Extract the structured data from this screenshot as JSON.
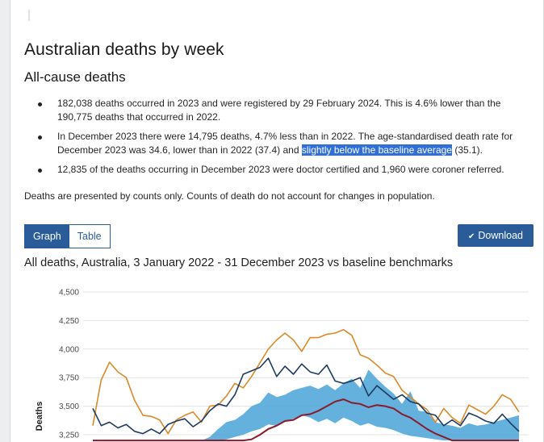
{
  "page": {
    "title": "Australian deaths by week",
    "subtitle": "All-cause deaths",
    "bullets": [
      {
        "text": "182,038 deaths occurred in 2023 and were registered by 29 February 2024. This is 4.6% lower than the 190,775 deaths that occurred in 2022."
      },
      {
        "pre": "In December 2023 there were 14,795 deaths, 4.7% less than in 2022. The age-standardised death rate for December 2023 was 34.6, lower than in 2022 (37.4) and ",
        "highlight": "slightly below the baseline average",
        "post": " (35.1)."
      },
      {
        "text": "12,835 of the deaths occurring in December 2023 were doctor certified and 1,960 were coroner referred."
      }
    ],
    "note": "Deaths are presented by counts only. Counts of death do not account for changes in population."
  },
  "controls": {
    "tab_graph": "Graph",
    "tab_table": "Table",
    "download": "Download",
    "active_tab": "Graph"
  },
  "colors": {
    "primary": "#2b5c9a",
    "orange": "#d98a2b",
    "navy": "#1e3a5f",
    "baseline_band": "#4aa3d8",
    "dark_red": "#8b1a2b",
    "highlight": "#2f6fd6"
  },
  "chart_data": {
    "type": "line",
    "title": "All deaths, Australia, 3 January 2022 - 31 December 2023 vs baseline benchmarks",
    "ylabel": "Deaths",
    "xlabel": "",
    "ylim": [
      3250,
      4500
    ],
    "yticks": [
      4500,
      4250,
      4000,
      3750,
      3500,
      3250
    ],
    "grid": true,
    "x": [
      1,
      2,
      3,
      4,
      5,
      6,
      7,
      8,
      9,
      10,
      11,
      12,
      13,
      14,
      15,
      16,
      17,
      18,
      19,
      20,
      21,
      22,
      23,
      24,
      25,
      26,
      27,
      28,
      29,
      30,
      31,
      32,
      33,
      34,
      35,
      36,
      37,
      38,
      39,
      40,
      41,
      42,
      43,
      44,
      45,
      46,
      47,
      48,
      49,
      50,
      51,
      52
    ],
    "series": [
      {
        "values": [
          3330,
          3730,
          3885,
          3800,
          3750,
          3550,
          3420,
          3410,
          3380,
          3260,
          3380,
          3420,
          3450,
          3360,
          3500,
          3510,
          3590,
          3700,
          3660,
          3760,
          3880,
          4000,
          4080,
          4140,
          4080,
          3980,
          4100,
          4100,
          4130,
          4140,
          4170,
          4120,
          3950,
          3920,
          3860,
          3790,
          3760,
          3640,
          3580,
          3520,
          3470,
          3360,
          3480,
          3400,
          3350,
          3510,
          3470,
          3430,
          3500,
          3600,
          3560,
          3450
        ]
      },
      {
        "values": [
          3480,
          3330,
          3360,
          3310,
          3340,
          3280,
          3260,
          3300,
          3260,
          3340,
          3370,
          3390,
          3320,
          3370,
          3460,
          3520,
          3500,
          3600,
          3780,
          3810,
          3840,
          3920,
          3760,
          3850,
          3780,
          3870,
          3800,
          3780,
          3860,
          3720,
          3700,
          3720,
          3750,
          3590,
          3680,
          3620,
          3560,
          3600,
          3540,
          3520,
          3440,
          3420,
          3330,
          3380,
          3330,
          3440,
          3410,
          3370,
          3350,
          3430,
          3350,
          3280
        ]
      }
    ],
    "baseline_band": {
      "upper": [
        3200,
        3200,
        3200,
        3200,
        3200,
        3200,
        3200,
        3200,
        3200,
        3200,
        3200,
        3200,
        3200,
        3200,
        3230,
        3300,
        3360,
        3380,
        3430,
        3500,
        3530,
        3620,
        3580,
        3600,
        3640,
        3660,
        3680,
        3650,
        3690,
        3640,
        3700,
        3740,
        3660,
        3820,
        3740,
        3670,
        3610,
        3520,
        3630,
        3460,
        3450,
        3360,
        3340,
        3330,
        3310,
        3350,
        3330,
        3340,
        3360,
        3380,
        3400,
        3420
      ],
      "lower": [
        3200,
        3200,
        3200,
        3200,
        3200,
        3200,
        3200,
        3200,
        3200,
        3200,
        3200,
        3200,
        3200,
        3200,
        3200,
        3200,
        3210,
        3230,
        3250,
        3280,
        3300,
        3340,
        3330,
        3370,
        3390,
        3420,
        3400,
        3360,
        3390,
        3350,
        3400,
        3370,
        3330,
        3350,
        3320,
        3310,
        3290,
        3260,
        3240,
        3230,
        3220,
        3210,
        3200,
        3200,
        3200,
        3200,
        3200,
        3200,
        3200,
        3200,
        3200,
        3200
      ]
    },
    "baseline_average": [
      3200,
      3200,
      3200,
      3200,
      3200,
      3200,
      3200,
      3200,
      3200,
      3200,
      3200,
      3200,
      3200,
      3200,
      3200,
      3200,
      3200,
      3200,
      3200,
      3210,
      3250,
      3300,
      3330,
      3370,
      3380,
      3420,
      3430,
      3460,
      3500,
      3540,
      3560,
      3530,
      3520,
      3490,
      3510,
      3500,
      3480,
      3430,
      3400,
      3350,
      3300,
      3260,
      3230,
      3200,
      3200,
      3200,
      3200,
      3200,
      3200,
      3200,
      3200,
      3200
    ]
  }
}
